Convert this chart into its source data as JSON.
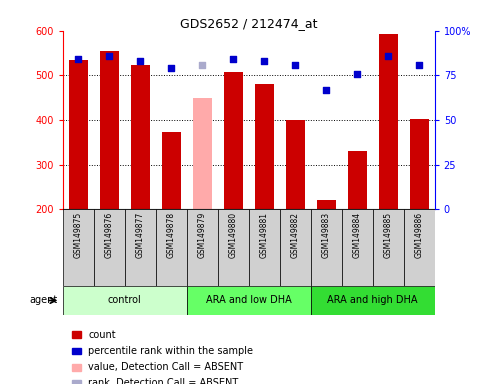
{
  "title": "GDS2652 / 212474_at",
  "samples": [
    "GSM149875",
    "GSM149876",
    "GSM149877",
    "GSM149878",
    "GSM149879",
    "GSM149880",
    "GSM149881",
    "GSM149882",
    "GSM149883",
    "GSM149884",
    "GSM149885",
    "GSM149886"
  ],
  "bar_values": [
    535,
    555,
    523,
    372,
    450,
    507,
    481,
    400,
    220,
    330,
    593,
    402
  ],
  "bar_colors": [
    "#cc0000",
    "#cc0000",
    "#cc0000",
    "#cc0000",
    "#ffaaaa",
    "#cc0000",
    "#cc0000",
    "#cc0000",
    "#cc0000",
    "#cc0000",
    "#cc0000",
    "#cc0000"
  ],
  "dot_values": [
    84,
    86,
    83,
    79,
    81,
    84,
    83,
    81,
    67,
    76,
    86,
    81
  ],
  "dot_absent": [
    false,
    false,
    false,
    false,
    true,
    false,
    false,
    false,
    false,
    false,
    false,
    false
  ],
  "dot_color_normal": "#0000cc",
  "dot_color_absent": "#aaaacc",
  "ylim_left": [
    200,
    600
  ],
  "ylim_right": [
    0,
    100
  ],
  "yticks_left": [
    200,
    300,
    400,
    500,
    600
  ],
  "yticks_right": [
    0,
    25,
    50,
    75,
    100
  ],
  "yticklabels_right": [
    "0",
    "25",
    "50",
    "75",
    "100%"
  ],
  "groups": [
    {
      "label": "control",
      "start": 0,
      "end": 3,
      "color": "#ccffcc"
    },
    {
      "label": "ARA and low DHA",
      "start": 4,
      "end": 7,
      "color": "#66ff66"
    },
    {
      "label": "ARA and high DHA",
      "start": 8,
      "end": 11,
      "color": "#33dd33"
    }
  ],
  "agent_label": "agent",
  "legend_items": [
    {
      "color": "#cc0000",
      "label": "count"
    },
    {
      "color": "#0000cc",
      "label": "percentile rank within the sample"
    },
    {
      "color": "#ffaaaa",
      "label": "value, Detection Call = ABSENT"
    },
    {
      "color": "#aaaacc",
      "label": "rank, Detection Call = ABSENT"
    }
  ],
  "label_bg": "#d0d0d0",
  "bar_bottom": 200
}
